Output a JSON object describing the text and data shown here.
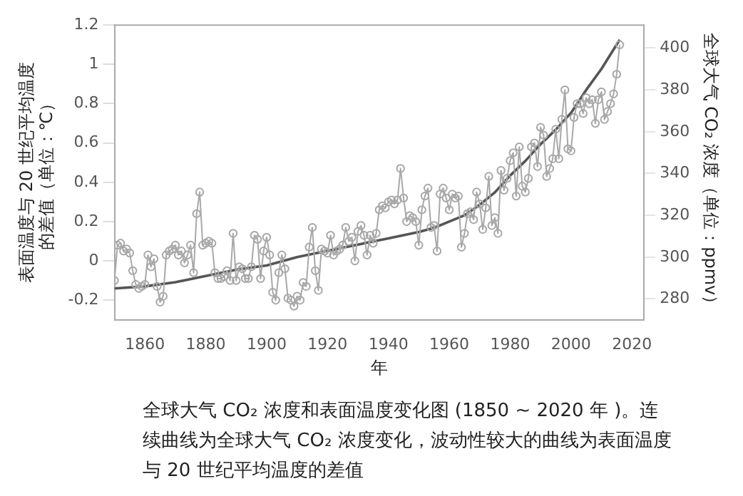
{
  "chart_data": {
    "type": "line",
    "xlabel": "年",
    "ylabel": "表面温度与 20 世纪平均温度的差值（单位：℃）",
    "y2label": "全球大气 CO₂ 浓度（单位：ppmv）",
    "xlim": [
      1850,
      2024
    ],
    "xticks": [
      1860,
      1880,
      1900,
      1920,
      1940,
      1960,
      1980,
      2000,
      2020
    ],
    "ylim": [
      -0.3,
      1.2
    ],
    "yticks": [
      -0.2,
      0,
      0.2,
      0.4,
      0.6,
      0.8,
      1,
      1.2
    ],
    "y2lim": [
      270,
      411
    ],
    "y2ticks": [
      280,
      300,
      320,
      340,
      360,
      380,
      400
    ],
    "grid": false,
    "legend": false,
    "annotations": [
      "全球大气 CO₂ 浓度和表面温度变化图 (1850 ~ 2020 年 )。连续曲线为全球大气 CO₂ 浓度变化，波动性较大的曲线为表面温度与 20 世纪平均温度的差值"
    ],
    "series": [
      {
        "color": "#a8a8a8",
        "marker": "circle",
        "x": [
          1850,
          1851,
          1852,
          1853,
          1854,
          1855,
          1856,
          1857,
          1858,
          1859,
          1860,
          1861,
          1862,
          1863,
          1864,
          1865,
          1866,
          1867,
          1868,
          1869,
          1870,
          1871,
          1872,
          1873,
          1874,
          1875,
          1876,
          1877,
          1878,
          1879,
          1880,
          1881,
          1882,
          1883,
          1884,
          1885,
          1886,
          1887,
          1888,
          1889,
          1890,
          1891,
          1892,
          1893,
          1894,
          1895,
          1896,
          1897,
          1898,
          1899,
          1900,
          1901,
          1902,
          1903,
          1904,
          1905,
          1906,
          1907,
          1908,
          1909,
          1910,
          1911,
          1912,
          1913,
          1914,
          1915,
          1916,
          1917,
          1918,
          1919,
          1920,
          1921,
          1922,
          1923,
          1924,
          1925,
          1926,
          1927,
          1928,
          1929,
          1930,
          1931,
          1932,
          1933,
          1934,
          1935,
          1936,
          1937,
          1938,
          1939,
          1940,
          1941,
          1942,
          1943,
          1944,
          1945,
          1946,
          1947,
          1948,
          1949,
          1950,
          1951,
          1952,
          1953,
          1954,
          1955,
          1956,
          1957,
          1958,
          1959,
          1960,
          1961,
          1962,
          1963,
          1964,
          1965,
          1966,
          1967,
          1968,
          1969,
          1970,
          1971,
          1972,
          1973,
          1974,
          1975,
          1976,
          1977,
          1978,
          1979,
          1980,
          1981,
          1982,
          1983,
          1984,
          1985,
          1986,
          1987,
          1988,
          1989,
          1990,
          1991,
          1992,
          1993,
          1994,
          1995,
          1996,
          1997,
          1998,
          1999,
          2000,
          2001,
          2002,
          2003,
          2004,
          2005,
          2006,
          2007,
          2008,
          2009,
          2010,
          2011,
          2012,
          2013,
          2014,
          2015,
          2016
        ],
        "values": [
          -0.1,
          0.08,
          0.09,
          0.05,
          0.06,
          0.04,
          -0.05,
          -0.12,
          -0.14,
          -0.13,
          -0.12,
          0.03,
          -0.03,
          0.01,
          -0.13,
          -0.21,
          -0.18,
          0.03,
          0.05,
          0.06,
          0.08,
          0.03,
          0.05,
          -0.01,
          0.03,
          0.08,
          -0.06,
          0.24,
          0.35,
          0.08,
          0.09,
          0.1,
          0.09,
          -0.06,
          -0.09,
          -0.09,
          -0.08,
          -0.05,
          -0.1,
          0.14,
          -0.1,
          -0.03,
          -0.04,
          -0.09,
          -0.09,
          -0.03,
          0.13,
          0.11,
          -0.09,
          0.05,
          0.12,
          0.03,
          -0.16,
          -0.2,
          -0.06,
          0.03,
          -0.04,
          -0.19,
          -0.2,
          -0.23,
          -0.18,
          -0.2,
          -0.11,
          -0.13,
          0.07,
          0.17,
          -0.05,
          -0.15,
          0.06,
          0.05,
          0.04,
          0.13,
          0.03,
          0.05,
          0.06,
          0.08,
          0.17,
          0.1,
          0.12,
          0.0,
          0.15,
          0.18,
          0.13,
          0.03,
          0.13,
          0.09,
          0.14,
          0.26,
          0.28,
          0.27,
          0.3,
          0.31,
          0.29,
          0.31,
          0.47,
          0.32,
          0.2,
          0.23,
          0.22,
          0.2,
          0.08,
          0.26,
          0.33,
          0.37,
          0.17,
          0.18,
          0.05,
          0.34,
          0.37,
          0.32,
          0.26,
          0.34,
          0.32,
          0.33,
          0.07,
          0.14,
          0.24,
          0.25,
          0.21,
          0.35,
          0.29,
          0.16,
          0.27,
          0.43,
          0.18,
          0.22,
          0.14,
          0.46,
          0.36,
          0.42,
          0.51,
          0.55,
          0.33,
          0.58,
          0.38,
          0.35,
          0.42,
          0.58,
          0.6,
          0.48,
          0.68,
          0.64,
          0.43,
          0.47,
          0.52,
          0.67,
          0.52,
          0.72,
          0.87,
          0.57,
          0.56,
          0.73,
          0.8,
          0.8,
          0.75,
          0.83,
          0.8,
          0.82,
          0.7,
          0.82,
          0.86,
          0.72,
          0.76,
          0.8,
          0.85,
          0.95,
          1.1
        ]
      },
      {
        "color": "#555555",
        "marker": "none",
        "axis": "y2",
        "x": [
          1850,
          1860,
          1870,
          1880,
          1890,
          1900,
          1910,
          1920,
          1930,
          1940,
          1950,
          1955,
          1960,
          1965,
          1970,
          1975,
          1980,
          1985,
          1990,
          1995,
          2000,
          2005,
          2010,
          2016
        ],
        "values": [
          285,
          286,
          288,
          291,
          294,
          296,
          300,
          303,
          306,
          309,
          312,
          314,
          317,
          320,
          325,
          331,
          339,
          346,
          354,
          361,
          369,
          380,
          390,
          404
        ]
      }
    ]
  }
}
